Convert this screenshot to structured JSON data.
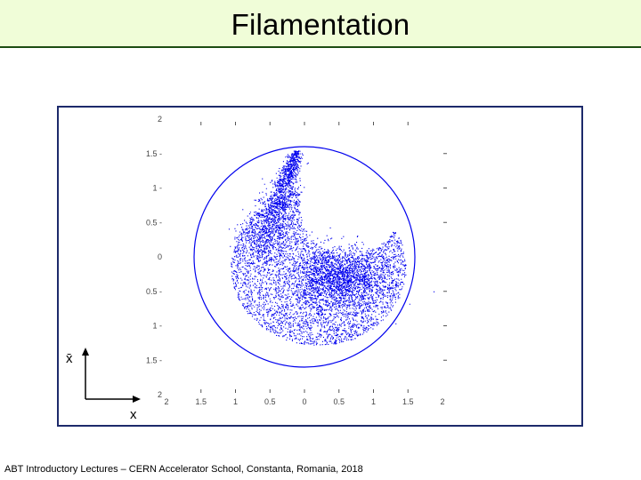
{
  "slide": {
    "title": "Filamentation",
    "footer": "ABT Introductory Lectures – CERN Accelerator School, Constanta, Romania, 2018"
  },
  "colors": {
    "title_bg": "#f0fdd8",
    "title_rule": "#1c4d12",
    "frame": "#1d2a6b",
    "particles": "#0000ee"
  },
  "chart_data": {
    "type": "scatter",
    "title": "",
    "xlabel": "x",
    "ylabel": "x̄",
    "xlim": [
      -2,
      2
    ],
    "ylim": [
      -2,
      2
    ],
    "x_ticks": [
      "2",
      "1.5",
      "1",
      "0.5",
      "0",
      "0.5",
      "1",
      "1.5",
      "2"
    ],
    "y_ticks": [
      "2",
      "1.5",
      "1",
      "0.5",
      "0",
      "0.5",
      "1",
      "1.5",
      "2"
    ],
    "grid": false,
    "legend": "none",
    "series": [
      {
        "kind": "ring",
        "shape": "circle",
        "center": [
          0,
          0
        ],
        "radius": 1.6
      },
      {
        "kind": "particle-cloud",
        "shape": "filamented spiral tail",
        "core_center": [
          0.5,
          -0.3
        ],
        "tail_tip": [
          -0.1,
          1.6
        ]
      }
    ]
  }
}
